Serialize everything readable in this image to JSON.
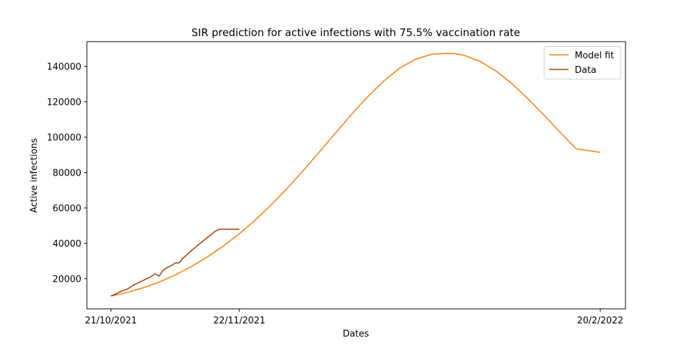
{
  "chart_data": {
    "type": "line",
    "title": "SIR prediction for active infections with 75.5% vaccination rate",
    "xlabel": "Dates",
    "ylabel": "Active infections",
    "x_ticks": [
      "21/10/2021",
      "22/11/2021",
      "20/2/2022"
    ],
    "x_tick_days": [
      0,
      32,
      122
    ],
    "xlim_days": [
      -6,
      128.3
    ],
    "y_ticks": [
      20000,
      40000,
      60000,
      80000,
      100000,
      120000,
      140000
    ],
    "y_tick_labels": [
      "20000",
      "40000",
      "60000",
      "80000",
      "100000",
      "120000",
      "140000"
    ],
    "ylim": [
      3000,
      154000
    ],
    "grid": false,
    "legend_position": "top-right",
    "series": [
      {
        "name": "Model fit",
        "color": "#ff7f0e",
        "days": [
          0,
          4,
          8,
          12,
          16,
          20,
          24,
          28,
          32,
          36,
          40,
          44,
          48,
          52,
          56,
          60,
          64,
          68,
          72,
          76,
          80,
          84,
          85.5,
          88,
          92,
          96,
          100,
          104,
          108,
          112,
          116,
          122
        ],
        "values": [
          10200,
          12200,
          14900,
          18100,
          22100,
          26800,
          32300,
          38400,
          45400,
          53200,
          61900,
          71200,
          81300,
          91800,
          102400,
          113000,
          122800,
          131700,
          139100,
          144100,
          146900,
          147400,
          147300,
          146300,
          142900,
          137400,
          130200,
          121700,
          112400,
          102800,
          93400,
          91500
        ]
      },
      {
        "name": "Data",
        "color": "#a0460a",
        "days": [
          0,
          1,
          2,
          3,
          4,
          5,
          6,
          7,
          8,
          9,
          10,
          11,
          12,
          13,
          14,
          15,
          16,
          17,
          18,
          19,
          20,
          21,
          22,
          23,
          24,
          25,
          26,
          27,
          28,
          29,
          30,
          31,
          32
        ],
        "values": [
          10300,
          11200,
          12300,
          13400,
          14000,
          15500,
          16800,
          17900,
          19000,
          20100,
          21200,
          22800,
          21500,
          24800,
          26300,
          27400,
          28900,
          29000,
          31800,
          33600,
          35800,
          37600,
          39600,
          41400,
          43200,
          45000,
          46800,
          48000,
          48000,
          48000,
          48000,
          48000,
          48000
        ]
      }
    ]
  }
}
